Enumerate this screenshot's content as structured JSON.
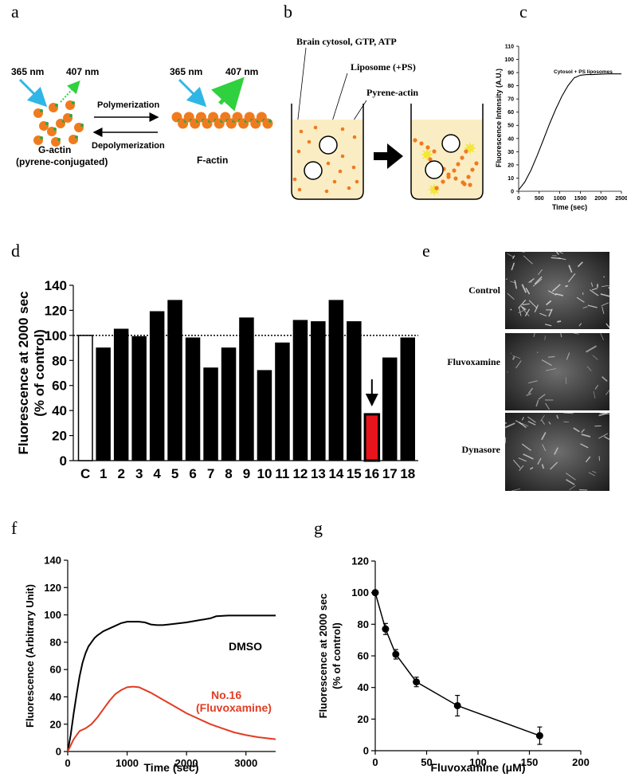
{
  "panel_letters": {
    "a": "a",
    "b": "b",
    "c": "c",
    "d": "d",
    "e": "e",
    "f": "f",
    "g": "g"
  },
  "panel_a": {
    "left_wavelength_in": "365 nm",
    "left_wavelength_out": "407 nm",
    "right_wavelength_in": "365 nm",
    "right_wavelength_out": "407 nm",
    "forward_label": "Polymerization",
    "reverse_label": "Depolymerization",
    "left_name": "G-actin",
    "left_sub": "(pyrene-conjugated)",
    "right_name": "F-actin",
    "colors": {
      "monomer": "#f07b1e",
      "dot": "#27a84a",
      "blue_arrow": "#2fb6e6",
      "green_arrow": "#2fd13e"
    }
  },
  "panel_b": {
    "label_cytosol": "Brain cytosol, GTP, ATP",
    "label_liposome": "Liposome (+PS)",
    "label_pyrene": "Pyrene-actin",
    "colors": {
      "fluid": "#fbedc3",
      "particle": "#ef7a22",
      "star": "#f4e63a"
    }
  },
  "chart_data": [
    {
      "id": "c",
      "type": "line",
      "ylabel": "Fluorescence Intensity (A.U.)",
      "xlabel": "Time (sec)",
      "xlim": [
        0,
        2500
      ],
      "ylim": [
        0,
        110
      ],
      "xticks": [
        0,
        500,
        1000,
        1500,
        2000,
        2500
      ],
      "yticks": [
        0,
        10,
        20,
        30,
        40,
        50,
        60,
        70,
        80,
        90,
        100,
        110
      ],
      "series": [
        {
          "name": "Cytosol + PS liposomes",
          "x": [
            0,
            150,
            300,
            450,
            600,
            750,
            900,
            1050,
            1200,
            1350,
            1500,
            1650,
            1800,
            2000,
            2200,
            2400,
            2500
          ],
          "y": [
            1,
            7,
            16,
            27,
            39,
            51,
            62,
            72,
            80,
            86,
            88,
            88.5,
            88.5,
            88.8,
            89,
            89,
            89
          ]
        }
      ]
    },
    {
      "id": "d",
      "type": "bar",
      "ylabel_line1": "Fluorescence at 2000 sec",
      "ylabel_line2": "(% of control)",
      "ylim": [
        0,
        140
      ],
      "yticks": [
        0,
        20,
        40,
        60,
        80,
        100,
        120,
        140
      ],
      "reference_line": 100,
      "categories": [
        "C",
        "1",
        "2",
        "3",
        "4",
        "5",
        "6",
        "7",
        "8",
        "9",
        "10",
        "11",
        "12",
        "13",
        "14",
        "15",
        "16",
        "17",
        "18"
      ],
      "values": [
        100,
        90,
        105,
        99,
        119,
        128,
        98,
        74,
        90,
        114,
        72,
        94,
        112,
        111,
        128,
        111,
        37,
        82,
        98
      ],
      "control_color": "#ffffff",
      "highlight_index": 16,
      "highlight_color": "#e8141b",
      "bar_color": "#000000"
    },
    {
      "id": "f",
      "type": "line",
      "ylabel": "Fluorescence (Arbitrary Unit)",
      "xlabel": "Time (sec)",
      "xlim": [
        0,
        3500
      ],
      "ylim": [
        0,
        140
      ],
      "xticks": [
        0,
        1000,
        2000,
        3000
      ],
      "yticks": [
        0,
        20,
        40,
        60,
        80,
        100,
        120,
        140
      ],
      "series": [
        {
          "name": "DMSO",
          "color": "#000000",
          "x": [
            0,
            50,
            100,
            150,
            200,
            250,
            300,
            350,
            400,
            450,
            500,
            600,
            700,
            800,
            900,
            1000,
            1100,
            1200,
            1300,
            1400,
            1500,
            1600,
            1700,
            1800,
            2000,
            2200,
            2400,
            2500,
            2700,
            3000,
            3300,
            3500
          ],
          "y": [
            0,
            12,
            28,
            42,
            55,
            65,
            72,
            77,
            80,
            83,
            85,
            88,
            90,
            92,
            94,
            95,
            95,
            95,
            94.5,
            93,
            92.5,
            92.5,
            93,
            93.5,
            94.5,
            96,
            97.5,
            99,
            99.5,
            99.5,
            99.5,
            99.5
          ]
        },
        {
          "name_line1": "No.16",
          "name_line2": "(Fluvoxamine)",
          "color": "#e23c23",
          "x": [
            0,
            100,
            200,
            300,
            400,
            500,
            600,
            700,
            800,
            900,
            1000,
            1100,
            1200,
            1400,
            1600,
            1800,
            2000,
            2200,
            2400,
            2600,
            2800,
            3000,
            3200,
            3500
          ],
          "y": [
            0,
            9,
            15,
            17,
            20,
            25,
            31,
            37,
            42,
            45,
            47,
            47.5,
            47,
            43,
            38,
            33,
            28,
            24,
            20,
            17,
            14,
            12,
            10.5,
            9
          ]
        }
      ]
    },
    {
      "id": "g",
      "type": "scatter",
      "ylabel_line1": "Fluorescence at 2000 sec",
      "ylabel_line2": "(% of control)",
      "xlabel": "Fluvoxamine (μM)",
      "xlim": [
        0,
        200
      ],
      "ylim": [
        0,
        120
      ],
      "xticks": [
        0,
        50,
        100,
        150,
        200
      ],
      "yticks": [
        0,
        20,
        40,
        60,
        80,
        100,
        120
      ],
      "x": [
        0,
        10,
        20,
        40,
        80,
        160
      ],
      "y": [
        100,
        77,
        61,
        43.5,
        28.5,
        9.5
      ],
      "error": [
        0,
        3.5,
        3,
        3,
        6.5,
        5.5
      ]
    }
  ],
  "panel_e": {
    "labels": [
      "Control",
      "Fluvoxamine",
      "Dynasore"
    ]
  }
}
